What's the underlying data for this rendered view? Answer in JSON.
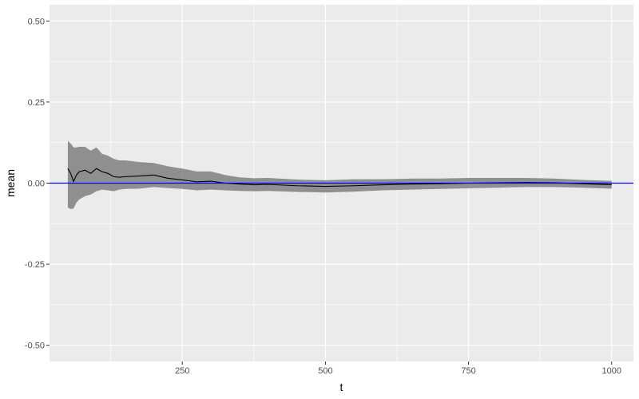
{
  "chart_data": {
    "type": "line",
    "title": "",
    "xlabel": "t",
    "ylabel": "mean",
    "xlim": [
      18,
      1038
    ],
    "ylim": [
      -0.55,
      0.55
    ],
    "x_ticks": [
      250,
      500,
      750,
      1000
    ],
    "x_tick_labels": [
      "250",
      "500",
      "750",
      "1000"
    ],
    "y_ticks": [
      -0.5,
      -0.25,
      0.0,
      0.25,
      0.5
    ],
    "y_tick_labels": [
      "-0.50",
      "-0.25",
      "0.00",
      "0.25",
      "0.50"
    ],
    "grid": true,
    "legend": "none",
    "reference_line": {
      "y": 0,
      "color": "#0000ff"
    },
    "series": [
      {
        "x": [
          50,
          55,
          60,
          65,
          70,
          80,
          90,
          100,
          110,
          120,
          130,
          140,
          150,
          175,
          200,
          225,
          250,
          275,
          300,
          325,
          350,
          375,
          400,
          450,
          500,
          550,
          600,
          650,
          700,
          750,
          800,
          850,
          900,
          950,
          1000
        ],
        "y": [
          0.045,
          0.03,
          0.005,
          0.025,
          0.035,
          0.04,
          0.03,
          0.045,
          0.035,
          0.03,
          0.02,
          0.018,
          0.02,
          0.022,
          0.025,
          0.015,
          0.01,
          0.004,
          0.006,
          0.0,
          -0.003,
          -0.005,
          -0.004,
          -0.008,
          -0.01,
          -0.008,
          -0.005,
          -0.003,
          -0.002,
          0.0,
          0.001,
          0.002,
          0.001,
          -0.002,
          -0.005
        ],
        "lower": [
          -0.075,
          -0.08,
          -0.078,
          -0.06,
          -0.05,
          -0.04,
          -0.035,
          -0.025,
          -0.02,
          -0.022,
          -0.025,
          -0.02,
          -0.018,
          -0.017,
          -0.012,
          -0.015,
          -0.018,
          -0.022,
          -0.02,
          -0.022,
          -0.024,
          -0.025,
          -0.024,
          -0.027,
          -0.029,
          -0.026,
          -0.022,
          -0.02,
          -0.018,
          -0.016,
          -0.014,
          -0.012,
          -0.012,
          -0.014,
          -0.017
        ],
        "upper": [
          0.13,
          0.122,
          0.11,
          0.11,
          0.112,
          0.112,
          0.1,
          0.11,
          0.09,
          0.085,
          0.075,
          0.07,
          0.07,
          0.065,
          0.062,
          0.052,
          0.045,
          0.036,
          0.036,
          0.025,
          0.018,
          0.015,
          0.016,
          0.011,
          0.009,
          0.012,
          0.012,
          0.014,
          0.014,
          0.016,
          0.016,
          0.016,
          0.014,
          0.01,
          0.007
        ]
      }
    ]
  }
}
